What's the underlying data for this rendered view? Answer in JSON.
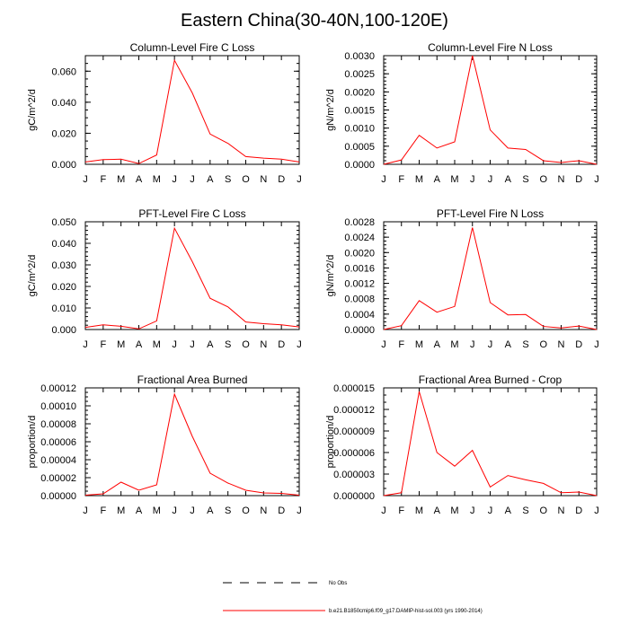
{
  "figure": {
    "title": "Eastern China(30-40N,100-120E)",
    "legend": [
      {
        "label": "No Obs",
        "style": "dashed",
        "color": "#000000"
      },
      {
        "label": "b.e21.B1850cmip6.f09_g17.DAMIP-hist-sol.003 (yrs 1990-2014)",
        "style": "solid",
        "color": "#ff0000"
      }
    ]
  },
  "chart_data": [
    {
      "type": "line",
      "title": "Column-Level Fire C Loss",
      "ylabel": "gC/m^2/d",
      "xlabel": "",
      "categories": [
        "J",
        "F",
        "M",
        "A",
        "M",
        "J",
        "J",
        "A",
        "S",
        "O",
        "N",
        "D",
        "J"
      ],
      "ylim": [
        0,
        0.07
      ],
      "yticks": [
        0,
        0.02,
        0.04,
        0.06
      ],
      "ytick_labels": [
        "0.000",
        "0.020",
        "0.040",
        "0.060"
      ],
      "minor_step": 0.005,
      "series": [
        {
          "values": [
            0.0015,
            0.003,
            0.0033,
            0.0005,
            0.006,
            0.067,
            0.046,
            0.0195,
            0.0135,
            0.005,
            0.004,
            0.0033,
            0.0015
          ],
          "color": "#ff0000"
        }
      ]
    },
    {
      "type": "line",
      "title": "Column-Level Fire N Loss",
      "ylabel": "gN/m^2/d",
      "xlabel": "",
      "categories": [
        "J",
        "F",
        "M",
        "A",
        "M",
        "J",
        "J",
        "A",
        "S",
        "O",
        "N",
        "D",
        "J"
      ],
      "ylim": [
        0,
        0.003
      ],
      "yticks": [
        0,
        0.0005,
        0.001,
        0.0015,
        0.002,
        0.0025,
        0.003
      ],
      "ytick_labels": [
        "0.0000",
        "0.0005",
        "0.0010",
        "0.0015",
        "0.0020",
        "0.0025",
        "0.0030"
      ],
      "minor_step": 0.0001,
      "series": [
        {
          "values": [
            0.0,
            0.00012,
            0.0008,
            0.00045,
            0.00062,
            0.003,
            0.00095,
            0.00045,
            0.00041,
            0.0001,
            5e-05,
            0.0001,
            0.0
          ]
        }
      ]
    },
    {
      "type": "line",
      "title": "PFT-Level Fire C Loss",
      "ylabel": "gC/m^2/d",
      "xlabel": "",
      "categories": [
        "J",
        "F",
        "M",
        "A",
        "M",
        "J",
        "J",
        "A",
        "S",
        "O",
        "N",
        "D",
        "J"
      ],
      "ylim": [
        0,
        0.05
      ],
      "yticks": [
        0,
        0.01,
        0.02,
        0.03,
        0.04,
        0.05
      ],
      "ytick_labels": [
        "0.000",
        "0.010",
        "0.020",
        "0.030",
        "0.040",
        "0.050"
      ],
      "minor_step": 0.002,
      "series": [
        {
          "values": [
            0.001,
            0.0022,
            0.0015,
            0.0003,
            0.004,
            0.047,
            0.0315,
            0.0145,
            0.0105,
            0.0035,
            0.0027,
            0.0022,
            0.0012
          ]
        }
      ]
    },
    {
      "type": "line",
      "title": "PFT-Level Fire N Loss",
      "ylabel": "gN/m^2/d",
      "xlabel": "",
      "categories": [
        "J",
        "F",
        "M",
        "A",
        "M",
        "J",
        "J",
        "A",
        "S",
        "O",
        "N",
        "D",
        "J"
      ],
      "ylim": [
        0,
        0.0028
      ],
      "yticks": [
        0,
        0.0004,
        0.0008,
        0.0012,
        0.0016,
        0.002,
        0.0024,
        0.0028
      ],
      "ytick_labels": [
        "0.0000",
        "0.0004",
        "0.0008",
        "0.0012",
        "0.0016",
        "0.0020",
        "0.0024",
        "0.0028"
      ],
      "minor_step": 0.0001,
      "series": [
        {
          "values": [
            0.0,
            0.0001,
            0.00075,
            0.00045,
            0.0006,
            0.00265,
            0.0007,
            0.00038,
            0.00039,
            8e-05,
            4e-05,
            9e-05,
            0.0
          ]
        }
      ]
    },
    {
      "type": "line",
      "title": "Fractional Area Burned",
      "ylabel": "proportion/d",
      "xlabel": "",
      "categories": [
        "J",
        "F",
        "M",
        "A",
        "M",
        "J",
        "J",
        "A",
        "S",
        "O",
        "N",
        "D",
        "J"
      ],
      "ylim": [
        0,
        0.00012
      ],
      "yticks": [
        0,
        2e-05,
        4e-05,
        6e-05,
        8e-05,
        0.0001,
        0.00012
      ],
      "ytick_labels": [
        "0.00000",
        "0.00002",
        "0.00004",
        "0.00006",
        "0.00008",
        "0.00010",
        "0.00012"
      ],
      "minor_step": 5e-06,
      "series": [
        {
          "values": [
            5e-07,
            2e-06,
            1.5e-05,
            6e-06,
            1.2e-05,
            0.000113,
            6.6e-05,
            2.5e-05,
            1.4e-05,
            6e-06,
            3e-06,
            2.5e-06,
            5e-07
          ]
        }
      ]
    },
    {
      "type": "line",
      "title": "Fractional Area Burned - Crop",
      "ylabel": "proportion/d",
      "xlabel": "",
      "categories": [
        "J",
        "F",
        "M",
        "A",
        "M",
        "J",
        "J",
        "A",
        "S",
        "O",
        "N",
        "D",
        "J"
      ],
      "ylim": [
        0,
        1.5e-05
      ],
      "yticks": [
        0,
        3e-06,
        6e-06,
        9e-06,
        1.2e-05,
        1.5e-05
      ],
      "ytick_labels": [
        "0.000000",
        "0.000003",
        "0.000006",
        "0.000009",
        "0.000012",
        "0.000015"
      ],
      "minor_step": 1e-06,
      "series": [
        {
          "values": [
            0.0,
            4e-07,
            1.45e-05,
            6e-06,
            4.1e-06,
            6.3e-06,
            1.2e-06,
            2.8e-06,
            2.2e-06,
            1.7e-06,
            4e-07,
            5e-07,
            0.0
          ]
        }
      ]
    }
  ]
}
